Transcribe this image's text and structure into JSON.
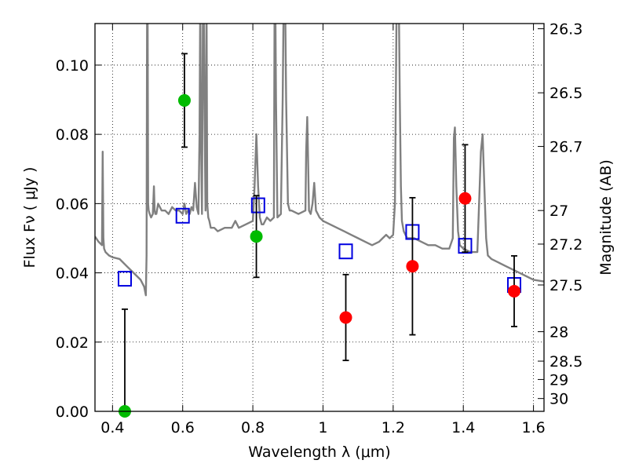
{
  "chart_data": {
    "type": "scatter",
    "xlabel": "Wavelength  λ (μm)",
    "ylabel": "Flux  Fν  ( μJy )",
    "y2label": "Magnitude (AB)",
    "xlim": [
      0.35,
      1.63
    ],
    "ylim": [
      0.0,
      0.112
    ],
    "grid": true,
    "x_ticks": [
      0.4,
      0.6,
      0.8,
      1.0,
      1.2,
      1.4,
      1.6
    ],
    "x_tick_labels": [
      "0.4",
      "0.6",
      "0.8",
      "1",
      "1.2",
      "1.4",
      "1.6"
    ],
    "y_ticks": [
      0.0,
      0.02,
      0.04,
      0.06,
      0.08,
      0.1
    ],
    "y_tick_labels": [
      "0.00",
      "0.02",
      "0.04",
      "0.06",
      "0.08",
      "0.10"
    ],
    "magnitude_ticks": [
      {
        "label": "26.3",
        "flux": 0.1105
      },
      {
        "label": "26.5",
        "flux": 0.092
      },
      {
        "label": "26.7",
        "flux": 0.0765
      },
      {
        "label": "27",
        "flux": 0.058
      },
      {
        "label": "27.2",
        "flux": 0.0483
      },
      {
        "label": "27.5",
        "flux": 0.0365
      },
      {
        "label": "28",
        "flux": 0.023
      },
      {
        "label": "28.5",
        "flux": 0.0145
      },
      {
        "label": "29",
        "flux": 0.0092
      },
      {
        "label": "30",
        "flux": 0.0037
      }
    ],
    "series": [
      {
        "color": "#808080",
        "marker": "line",
        "x": [
          0.35,
          0.36,
          0.37,
          0.372,
          0.374,
          0.376,
          0.38,
          0.39,
          0.4,
          0.42,
          0.44,
          0.46,
          0.48,
          0.49,
          0.495,
          0.497,
          0.4985,
          0.5,
          0.5015,
          0.503,
          0.506,
          0.51,
          0.515,
          0.518,
          0.52,
          0.522,
          0.525,
          0.53,
          0.54,
          0.55,
          0.56,
          0.57,
          0.58,
          0.59,
          0.6,
          0.605,
          0.61,
          0.615,
          0.62,
          0.625,
          0.63,
          0.635,
          0.64,
          0.645,
          0.648,
          0.65,
          0.652,
          0.655,
          0.658,
          0.66,
          0.662,
          0.665,
          0.668,
          0.67,
          0.673,
          0.676,
          0.68,
          0.69,
          0.7,
          0.72,
          0.74,
          0.75,
          0.76,
          0.78,
          0.8,
          0.805,
          0.81,
          0.815,
          0.82,
          0.825,
          0.83,
          0.84,
          0.85,
          0.86,
          0.862,
          0.864,
          0.866,
          0.87,
          0.88,
          0.885,
          0.888,
          0.892,
          0.895,
          0.9,
          0.905,
          0.91,
          0.93,
          0.95,
          0.952,
          0.955,
          0.958,
          0.96,
          0.965,
          0.97,
          0.975,
          0.98,
          0.985,
          0.99,
          1.0,
          1.02,
          1.04,
          1.06,
          1.08,
          1.1,
          1.12,
          1.14,
          1.16,
          1.17,
          1.18,
          1.19,
          1.2,
          1.205,
          1.21,
          1.213,
          1.216,
          1.219,
          1.222,
          1.225,
          1.23,
          1.24,
          1.26,
          1.28,
          1.3,
          1.32,
          1.34,
          1.36,
          1.37,
          1.373,
          1.376,
          1.38,
          1.385,
          1.39,
          1.4,
          1.42,
          1.44,
          1.445,
          1.45,
          1.455,
          1.46,
          1.465,
          1.47,
          1.48,
          1.5,
          1.52,
          1.54,
          1.56,
          1.58,
          1.6,
          1.63
        ],
        "values": [
          0.0505,
          0.049,
          0.048,
          0.075,
          0.05,
          0.047,
          0.046,
          0.045,
          0.0445,
          0.044,
          0.042,
          0.04,
          0.038,
          0.036,
          0.0335,
          0.045,
          0.12,
          0.12,
          0.06,
          0.058,
          0.057,
          0.056,
          0.057,
          0.065,
          0.058,
          0.057,
          0.057,
          0.06,
          0.058,
          0.058,
          0.057,
          0.059,
          0.058,
          0.058,
          0.057,
          0.06,
          0.057,
          0.058,
          0.057,
          0.059,
          0.058,
          0.066,
          0.059,
          0.057,
          0.08,
          0.12,
          0.08,
          0.057,
          0.12,
          0.12,
          0.09,
          0.058,
          0.12,
          0.06,
          0.056,
          0.055,
          0.053,
          0.053,
          0.052,
          0.053,
          0.053,
          0.055,
          0.053,
          0.054,
          0.055,
          0.065,
          0.08,
          0.065,
          0.056,
          0.054,
          0.054,
          0.056,
          0.055,
          0.056,
          0.12,
          0.12,
          0.09,
          0.056,
          0.057,
          0.09,
          0.12,
          0.12,
          0.09,
          0.06,
          0.058,
          0.058,
          0.057,
          0.058,
          0.075,
          0.085,
          0.07,
          0.058,
          0.057,
          0.06,
          0.066,
          0.058,
          0.057,
          0.056,
          0.055,
          0.054,
          0.053,
          0.052,
          0.051,
          0.05,
          0.049,
          0.048,
          0.049,
          0.05,
          0.051,
          0.05,
          0.051,
          0.06,
          0.12,
          0.12,
          0.12,
          0.09,
          0.065,
          0.055,
          0.052,
          0.05,
          0.05,
          0.049,
          0.048,
          0.048,
          0.047,
          0.047,
          0.05,
          0.079,
          0.082,
          0.065,
          0.052,
          0.048,
          0.047,
          0.046,
          0.046,
          0.06,
          0.075,
          0.08,
          0.065,
          0.05,
          0.045,
          0.044,
          0.043,
          0.042,
          0.041,
          0.04,
          0.039,
          0.038,
          0.0375
        ]
      },
      {
        "color": "#0000e0",
        "marker": "square",
        "x": [
          0.435,
          0.6,
          0.815,
          1.065,
          1.255,
          1.405,
          1.545
        ],
        "values": [
          0.0383,
          0.0565,
          0.0595,
          0.0462,
          0.0518,
          0.0478,
          0.0365
        ]
      },
      {
        "color": "#00bb00",
        "marker": "circle",
        "x": [
          0.435,
          0.605,
          0.81
        ],
        "values": [
          0.0,
          0.0898,
          0.0505
        ],
        "errors": [
          0.0295,
          0.0135,
          0.0118
        ]
      },
      {
        "color": "#ff0000",
        "marker": "circle",
        "x": [
          1.065,
          1.255,
          1.405,
          1.545
        ],
        "values": [
          0.0271,
          0.0419,
          0.0615,
          0.0347
        ],
        "errors": [
          0.0124,
          0.0198,
          0.0155,
          0.0102
        ]
      }
    ]
  }
}
